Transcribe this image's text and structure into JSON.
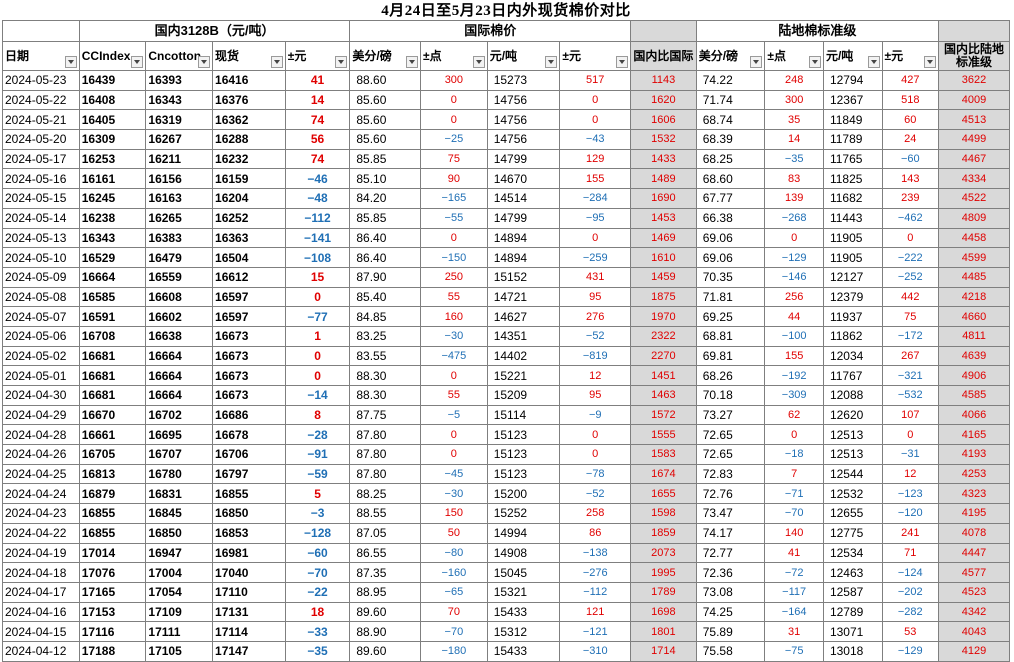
{
  "title": "4月24日至5月23日内外现货棉价对比",
  "groups": {
    "domestic": "国内3128B（元/吨）",
    "international": "国际棉价",
    "diff_intl": "",
    "india": "陆地棉标准级",
    "diff_india": ""
  },
  "headers": [
    "日期",
    "CCIndex",
    "Cncotton",
    "现货",
    "±元",
    "美分/磅",
    "±点",
    "元/吨",
    "±元",
    "国内比国际",
    "美分/磅",
    "±点",
    "元/吨",
    "±元",
    "国内比陆地标准级"
  ],
  "rows": [
    [
      "2024-05-23",
      "16439",
      "16393",
      "16416",
      "41",
      "88.60",
      "300",
      "15273",
      "517",
      "1143",
      "74.22",
      "248",
      "12794",
      "427",
      "3622"
    ],
    [
      "2024-05-22",
      "16408",
      "16343",
      "16376",
      "14",
      "85.60",
      "0",
      "14756",
      "0",
      "1620",
      "71.74",
      "300",
      "12367",
      "518",
      "4009"
    ],
    [
      "2024-05-21",
      "16405",
      "16319",
      "16362",
      "74",
      "85.60",
      "0",
      "14756",
      "0",
      "1606",
      "68.74",
      "35",
      "11849",
      "60",
      "4513"
    ],
    [
      "2024-05-20",
      "16309",
      "16267",
      "16288",
      "56",
      "85.60",
      "−25",
      "14756",
      "−43",
      "1532",
      "68.39",
      "14",
      "11789",
      "24",
      "4499"
    ],
    [
      "2024-05-17",
      "16253",
      "16211",
      "16232",
      "74",
      "85.85",
      "75",
      "14799",
      "129",
      "1433",
      "68.25",
      "−35",
      "11765",
      "−60",
      "4467"
    ],
    [
      "2024-05-16",
      "16161",
      "16156",
      "16159",
      "−46",
      "85.10",
      "90",
      "14670",
      "155",
      "1489",
      "68.60",
      "83",
      "11825",
      "143",
      "4334"
    ],
    [
      "2024-05-15",
      "16245",
      "16163",
      "16204",
      "−48",
      "84.20",
      "−165",
      "14514",
      "−284",
      "1690",
      "67.77",
      "139",
      "11682",
      "239",
      "4522"
    ],
    [
      "2024-05-14",
      "16238",
      "16265",
      "16252",
      "−112",
      "85.85",
      "−55",
      "14799",
      "−95",
      "1453",
      "66.38",
      "−268",
      "11443",
      "−462",
      "4809"
    ],
    [
      "2024-05-13",
      "16343",
      "16383",
      "16363",
      "−141",
      "86.40",
      "0",
      "14894",
      "0",
      "1469",
      "69.06",
      "0",
      "11905",
      "0",
      "4458"
    ],
    [
      "2024-05-10",
      "16529",
      "16479",
      "16504",
      "−108",
      "86.40",
      "−150",
      "14894",
      "−259",
      "1610",
      "69.06",
      "−129",
      "11905",
      "−222",
      "4599"
    ],
    [
      "2024-05-09",
      "16664",
      "16559",
      "16612",
      "15",
      "87.90",
      "250",
      "15152",
      "431",
      "1459",
      "70.35",
      "−146",
      "12127",
      "−252",
      "4485"
    ],
    [
      "2024-05-08",
      "16585",
      "16608",
      "16597",
      "0",
      "85.40",
      "55",
      "14721",
      "95",
      "1875",
      "71.81",
      "256",
      "12379",
      "442",
      "4218"
    ],
    [
      "2024-05-07",
      "16591",
      "16602",
      "16597",
      "−77",
      "84.85",
      "160",
      "14627",
      "276",
      "1970",
      "69.25",
      "44",
      "11937",
      "75",
      "4660"
    ],
    [
      "2024-05-06",
      "16708",
      "16638",
      "16673",
      "1",
      "83.25",
      "−30",
      "14351",
      "−52",
      "2322",
      "68.81",
      "−100",
      "11862",
      "−172",
      "4811"
    ],
    [
      "2024-05-02",
      "16681",
      "16664",
      "16673",
      "0",
      "83.55",
      "−475",
      "14402",
      "−819",
      "2270",
      "69.81",
      "155",
      "12034",
      "267",
      "4639"
    ],
    [
      "2024-05-01",
      "16681",
      "16664",
      "16673",
      "0",
      "88.30",
      "0",
      "15221",
      "12",
      "1451",
      "68.26",
      "−192",
      "11767",
      "−321",
      "4906"
    ],
    [
      "2024-04-30",
      "16681",
      "16664",
      "16673",
      "−14",
      "88.30",
      "55",
      "15209",
      "95",
      "1463",
      "70.18",
      "−309",
      "12088",
      "−532",
      "4585"
    ],
    [
      "2024-04-29",
      "16670",
      "16702",
      "16686",
      "8",
      "87.75",
      "−5",
      "15114",
      "−9",
      "1572",
      "73.27",
      "62",
      "12620",
      "107",
      "4066"
    ],
    [
      "2024-04-28",
      "16661",
      "16695",
      "16678",
      "−28",
      "87.80",
      "0",
      "15123",
      "0",
      "1555",
      "72.65",
      "0",
      "12513",
      "0",
      "4165"
    ],
    [
      "2024-04-26",
      "16705",
      "16707",
      "16706",
      "−91",
      "87.80",
      "0",
      "15123",
      "0",
      "1583",
      "72.65",
      "−18",
      "12513",
      "−31",
      "4193"
    ],
    [
      "2024-04-25",
      "16813",
      "16780",
      "16797",
      "−59",
      "87.80",
      "−45",
      "15123",
      "−78",
      "1674",
      "72.83",
      "7",
      "12544",
      "12",
      "4253"
    ],
    [
      "2024-04-24",
      "16879",
      "16831",
      "16855",
      "5",
      "88.25",
      "−30",
      "15200",
      "−52",
      "1655",
      "72.76",
      "−71",
      "12532",
      "−123",
      "4323"
    ],
    [
      "2024-04-23",
      "16855",
      "16845",
      "16850",
      "−3",
      "88.55",
      "150",
      "15252",
      "258",
      "1598",
      "73.47",
      "−70",
      "12655",
      "−120",
      "4195"
    ],
    [
      "2024-04-22",
      "16855",
      "16850",
      "16853",
      "−128",
      "87.05",
      "50",
      "14994",
      "86",
      "1859",
      "74.17",
      "140",
      "12775",
      "241",
      "4078"
    ],
    [
      "2024-04-19",
      "17014",
      "16947",
      "16981",
      "−60",
      "86.55",
      "−80",
      "14908",
      "−138",
      "2073",
      "72.77",
      "41",
      "12534",
      "71",
      "4447"
    ],
    [
      "2024-04-18",
      "17076",
      "17004",
      "17040",
      "−70",
      "87.35",
      "−160",
      "15045",
      "−276",
      "1995",
      "72.36",
      "−72",
      "12463",
      "−124",
      "4577"
    ],
    [
      "2024-04-17",
      "17165",
      "17054",
      "17110",
      "−22",
      "88.95",
      "−65",
      "15321",
      "−112",
      "1789",
      "73.08",
      "−117",
      "12587",
      "−202",
      "4523"
    ],
    [
      "2024-04-16",
      "17153",
      "17109",
      "17131",
      "18",
      "89.60",
      "70",
      "15433",
      "121",
      "1698",
      "74.25",
      "−164",
      "12789",
      "−282",
      "4342"
    ],
    [
      "2024-04-15",
      "17116",
      "17111",
      "17114",
      "−33",
      "88.90",
      "−70",
      "15312",
      "−121",
      "1801",
      "75.89",
      "31",
      "13071",
      "53",
      "4043"
    ],
    [
      "2024-04-12",
      "17188",
      "17105",
      "17147",
      "−35",
      "89.60",
      "−180",
      "15433",
      "−310",
      "1714",
      "75.58",
      "−75",
      "13018",
      "−129",
      "4129"
    ]
  ],
  "colors": {
    "positive": "#e00000",
    "negative": "#1f6fb5",
    "highlight_bg": "#d9d9d9",
    "grid": "#7f7f7f"
  }
}
